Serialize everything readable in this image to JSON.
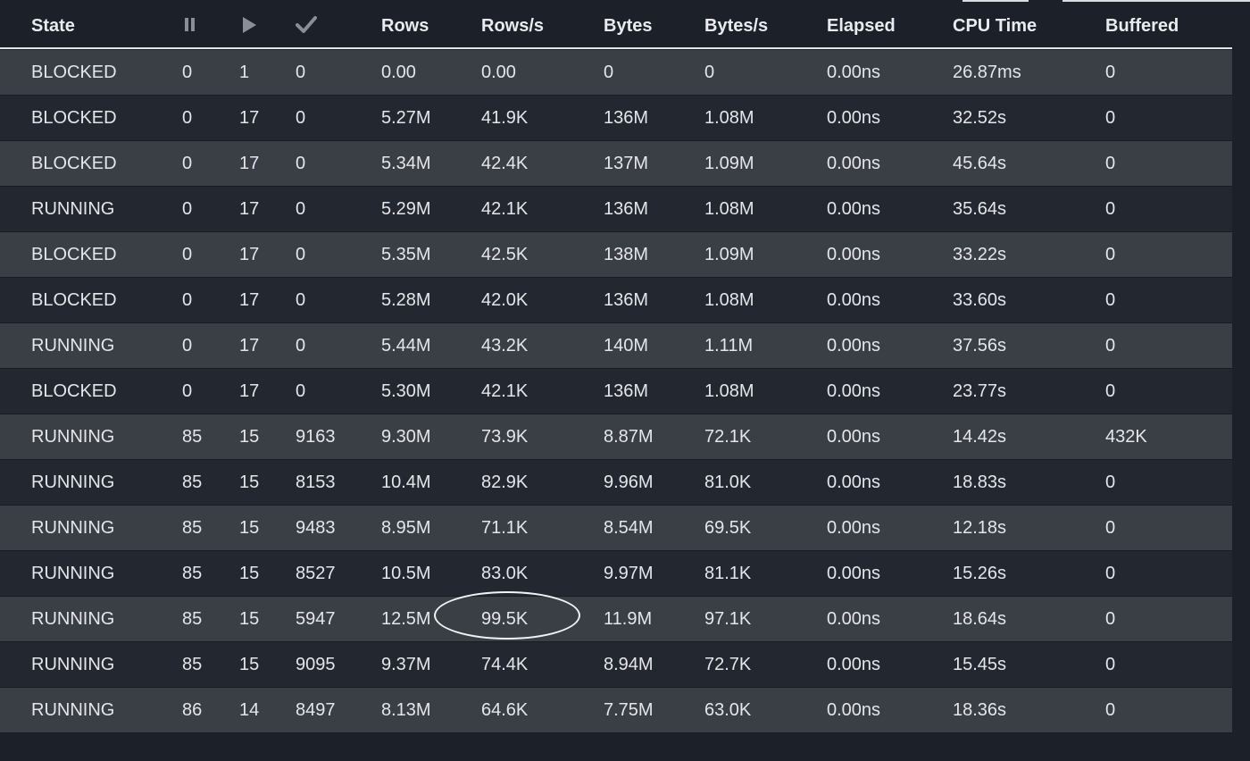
{
  "table": {
    "headers": {
      "state": "State",
      "queued_icon": "pause-icon",
      "running_icon": "play-icon",
      "finished_icon": "checkmark-icon",
      "rows": "Rows",
      "rows_per_sec": "Rows/s",
      "bytes": "Bytes",
      "bytes_per_sec": "Bytes/s",
      "elapsed": "Elapsed",
      "cpu_time": "CPU Time",
      "buffered": "Buffered"
    },
    "rows": [
      [
        "BLOCKED",
        "0",
        "1",
        "0",
        "0.00",
        "0.00",
        "0",
        "0",
        "0.00ns",
        "26.87ms",
        "0"
      ],
      [
        "BLOCKED",
        "0",
        "17",
        "0",
        "5.27M",
        "41.9K",
        "136M",
        "1.08M",
        "0.00ns",
        "32.52s",
        "0"
      ],
      [
        "BLOCKED",
        "0",
        "17",
        "0",
        "5.34M",
        "42.4K",
        "137M",
        "1.09M",
        "0.00ns",
        "45.64s",
        "0"
      ],
      [
        "RUNNING",
        "0",
        "17",
        "0",
        "5.29M",
        "42.1K",
        "136M",
        "1.08M",
        "0.00ns",
        "35.64s",
        "0"
      ],
      [
        "BLOCKED",
        "0",
        "17",
        "0",
        "5.35M",
        "42.5K",
        "138M",
        "1.09M",
        "0.00ns",
        "33.22s",
        "0"
      ],
      [
        "BLOCKED",
        "0",
        "17",
        "0",
        "5.28M",
        "42.0K",
        "136M",
        "1.08M",
        "0.00ns",
        "33.60s",
        "0"
      ],
      [
        "RUNNING",
        "0",
        "17",
        "0",
        "5.44M",
        "43.2K",
        "140M",
        "1.11M",
        "0.00ns",
        "37.56s",
        "0"
      ],
      [
        "BLOCKED",
        "0",
        "17",
        "0",
        "5.30M",
        "42.1K",
        "136M",
        "1.08M",
        "0.00ns",
        "23.77s",
        "0"
      ],
      [
        "RUNNING",
        "85",
        "15",
        "9163",
        "9.30M",
        "73.9K",
        "8.87M",
        "72.1K",
        "0.00ns",
        "14.42s",
        "432K"
      ],
      [
        "RUNNING",
        "85",
        "15",
        "8153",
        "10.4M",
        "82.9K",
        "9.96M",
        "81.0K",
        "0.00ns",
        "18.83s",
        "0"
      ],
      [
        "RUNNING",
        "85",
        "15",
        "9483",
        "8.95M",
        "71.1K",
        "8.54M",
        "69.5K",
        "0.00ns",
        "12.18s",
        "0"
      ],
      [
        "RUNNING",
        "85",
        "15",
        "8527",
        "10.5M",
        "83.0K",
        "9.97M",
        "81.1K",
        "0.00ns",
        "15.26s",
        "0"
      ],
      [
        "RUNNING",
        "85",
        "15",
        "5947",
        "12.5M",
        "99.5K",
        "11.9M",
        "97.1K",
        "0.00ns",
        "18.64s",
        "0"
      ],
      [
        "RUNNING",
        "85",
        "15",
        "9095",
        "9.37M",
        "74.4K",
        "8.94M",
        "72.7K",
        "0.00ns",
        "15.45s",
        "0"
      ],
      [
        "RUNNING",
        "86",
        "14",
        "8497",
        "8.13M",
        "64.6K",
        "7.75M",
        "63.0K",
        "0.00ns",
        "18.36s",
        "0"
      ]
    ]
  },
  "colors": {
    "background": "#1c2028",
    "row_odd": "#3a3e45",
    "row_even": "#23272f",
    "text": "#e4e6e9",
    "header_icon": "#8a8e95",
    "annotation": "#f2f3f5"
  }
}
